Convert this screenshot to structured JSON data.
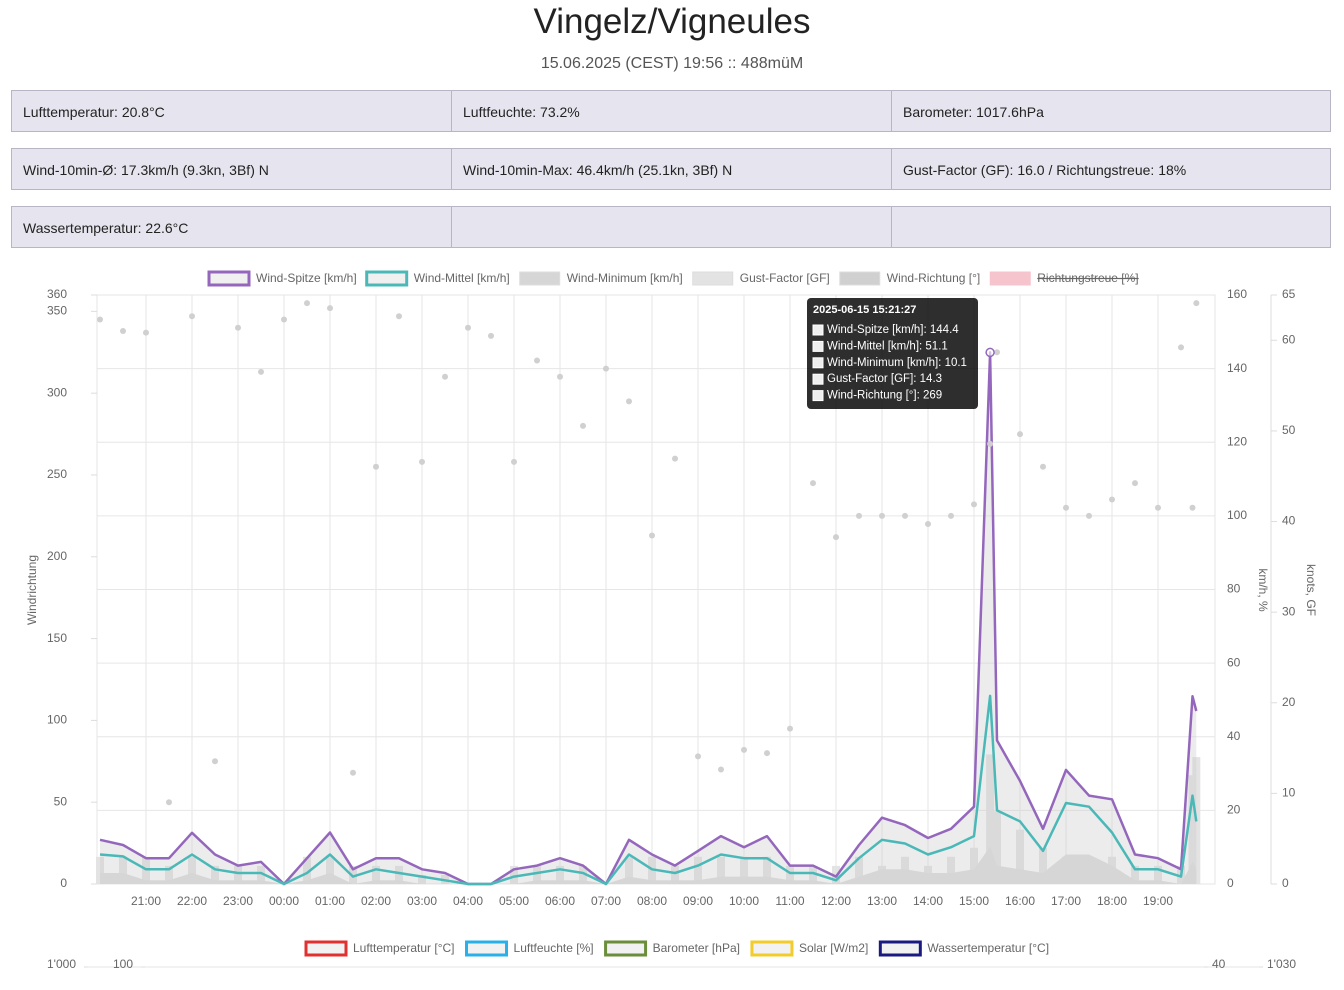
{
  "header": {
    "title": "Vingelz/Vigneules",
    "subtitle": "15.06.2025 (CEST) 19:56 :: 488müM"
  },
  "info_rows": [
    [
      "Lufttemperatur: 20.8°C",
      "Luftfeuchte: 73.2%",
      "Barometer: 1017.6hPa"
    ],
    [
      "Wind-10min-Ø: 17.3km/h (9.3kn, 3Bf) N",
      "Wind-10min-Max: 46.4km/h (25.1kn, 3Bf) N",
      "Gust-Factor (GF): 16.0 / Richtungstreue: 18%"
    ],
    [
      "Wassertemperatur: 22.6°C"
    ]
  ],
  "chart_data": [
    {
      "type": "line",
      "x": [
        "20:00",
        "20:30",
        "21:00",
        "21:30",
        "22:00",
        "22:30",
        "23:00",
        "23:30",
        "00:00",
        "00:30",
        "01:00",
        "01:30",
        "02:00",
        "02:30",
        "03:00",
        "03:30",
        "04:00",
        "04:30",
        "05:00",
        "05:30",
        "06:00",
        "06:30",
        "07:00",
        "07:30",
        "08:00",
        "08:30",
        "09:00",
        "09:30",
        "10:00",
        "10:30",
        "11:00",
        "11:30",
        "12:00",
        "12:30",
        "13:00",
        "13:30",
        "14:00",
        "14:30",
        "15:00",
        "15:21",
        "15:30",
        "16:00",
        "16:30",
        "17:00",
        "17:30",
        "18:00",
        "18:30",
        "19:00",
        "19:30",
        "19:45",
        "19:50"
      ],
      "xticks": [
        "21:00",
        "22:00",
        "23:00",
        "00:00",
        "01:00",
        "02:00",
        "03:00",
        "04:00",
        "05:00",
        "06:00",
        "07:00",
        "08:00",
        "09:00",
        "10:00",
        "11:00",
        "12:00",
        "13:00",
        "14:00",
        "15:00",
        "16:00",
        "17:00",
        "18:00",
        "19:00"
      ],
      "ylabel": "Windrichtung",
      "y2label": "km/h, %",
      "y3label": "knots, GF",
      "ylim": [
        0,
        360
      ],
      "yticks": [
        0,
        50,
        100,
        150,
        200,
        250,
        300,
        350,
        360
      ],
      "y2lim": [
        0,
        160
      ],
      "y2ticks": [
        0,
        20,
        40,
        60,
        80,
        100,
        120,
        140,
        160
      ],
      "y3lim": [
        0,
        65
      ],
      "y3ticks": [
        0,
        10,
        20,
        30,
        40,
        50,
        60,
        65
      ],
      "grid": true,
      "series": [
        {
          "name": "Wind-Spitze [km/h]",
          "color": "#9467bd",
          "kind": "area",
          "axis": "y2",
          "values": [
            12,
            10.6,
            7,
            7,
            13.9,
            8,
            5,
            6,
            0,
            7,
            14,
            4,
            7,
            7,
            4,
            3,
            0,
            0,
            4,
            5,
            7,
            5,
            0,
            12,
            8,
            5,
            9,
            13,
            10,
            13,
            5,
            5,
            2,
            10.6,
            18,
            16,
            12.5,
            15,
            21,
            144.4,
            39,
            28,
            15,
            31,
            24,
            23,
            8,
            7,
            4,
            51,
            47
          ]
        },
        {
          "name": "Wind-Mittel [km/h]",
          "color": "#4bb8b8",
          "kind": "line",
          "axis": "y2",
          "values": [
            8,
            7.5,
            4,
            4,
            8,
            4,
            3,
            3,
            0,
            3,
            8,
            2,
            4,
            3,
            2,
            1,
            0,
            0,
            2,
            3,
            4,
            3,
            0,
            8,
            4,
            3,
            5,
            8,
            7,
            7,
            3,
            3,
            1,
            7,
            12,
            11,
            8,
            10,
            13,
            51.1,
            20,
            17,
            9,
            22,
            21,
            14,
            4,
            4,
            2,
            24,
            17
          ]
        },
        {
          "name": "Wind-Minimum [km/h]",
          "color": "#d6d6d6",
          "kind": "fill",
          "axis": "y2",
          "values": [
            3,
            3,
            1,
            1,
            3,
            1,
            1,
            1,
            0,
            1,
            3,
            0,
            1,
            1,
            0,
            0,
            0,
            0,
            0,
            1,
            1,
            1,
            0,
            2,
            1,
            1,
            1,
            2,
            2,
            2,
            1,
            1,
            0,
            2,
            4,
            4,
            3,
            3,
            4,
            10.1,
            5,
            4,
            3,
            8,
            8,
            5,
            1,
            1,
            0,
            6,
            4
          ]
        },
        {
          "name": "Gust-Factor [GF]",
          "color": "#e3e3e3",
          "kind": "bar",
          "axis": "y3",
          "values": [
            3,
            3,
            3,
            2,
            3,
            2,
            2,
            2,
            0,
            3,
            3,
            2,
            2,
            2,
            1,
            1,
            0,
            0,
            2,
            2,
            2,
            2,
            0,
            3,
            3,
            2,
            3,
            3,
            3,
            3,
            2,
            2,
            2,
            3,
            2,
            3,
            2,
            3,
            4,
            14.3,
            8,
            6,
            4,
            3,
            3,
            3,
            2,
            2,
            2,
            12,
            14
          ]
        },
        {
          "name": "Wind-Richtung [°]",
          "color": "#d0d0d0",
          "kind": "scatter",
          "axis": "y",
          "values": [
            345,
            338,
            337,
            50,
            347,
            75,
            340,
            313,
            345,
            355,
            352,
            68,
            255,
            347,
            258,
            310,
            340,
            335,
            258,
            320,
            310,
            280,
            315,
            295,
            213,
            260,
            78,
            70,
            82,
            80,
            95,
            245,
            212,
            225,
            225,
            225,
            220,
            225,
            232,
            269,
            325,
            275,
            255,
            230,
            225,
            235,
            245,
            230,
            328,
            230,
            355
          ]
        }
      ],
      "hidden_series": [
        {
          "name": "Richtungstreue [%]",
          "color": "#f6c4cc"
        }
      ],
      "tooltip": {
        "title": "2025-06-15 15:21:27",
        "lines": [
          "Wind-Spitze [km/h]: 144.4",
          "Wind-Mittel [km/h]: 51.1",
          "Wind-Minimum [km/h]: 10.1",
          "Gust-Factor [GF]: 14.3",
          "Wind-Richtung [°]: 269"
        ]
      }
    },
    {
      "type": "line",
      "series": [
        {
          "name": "Lufttemperatur [°C]",
          "color": "#e03030"
        },
        {
          "name": "Luftfeuchte [%]",
          "color": "#2ab0e8"
        },
        {
          "name": "Barometer [hPa]",
          "color": "#6b8e3a"
        },
        {
          "name": "Solar [W/m2]",
          "color": "#f2cc2a"
        },
        {
          "name": "Wassertemperatur [°C]",
          "color": "#1a1a80"
        }
      ],
      "yticks": [
        {
          "value": 1000,
          "label": "1'000"
        }
      ],
      "y2ticks": [
        100
      ],
      "y3ticks": [
        40
      ],
      "y4ticks": [
        {
          "value": 1030,
          "label": "1'030"
        }
      ]
    }
  ]
}
